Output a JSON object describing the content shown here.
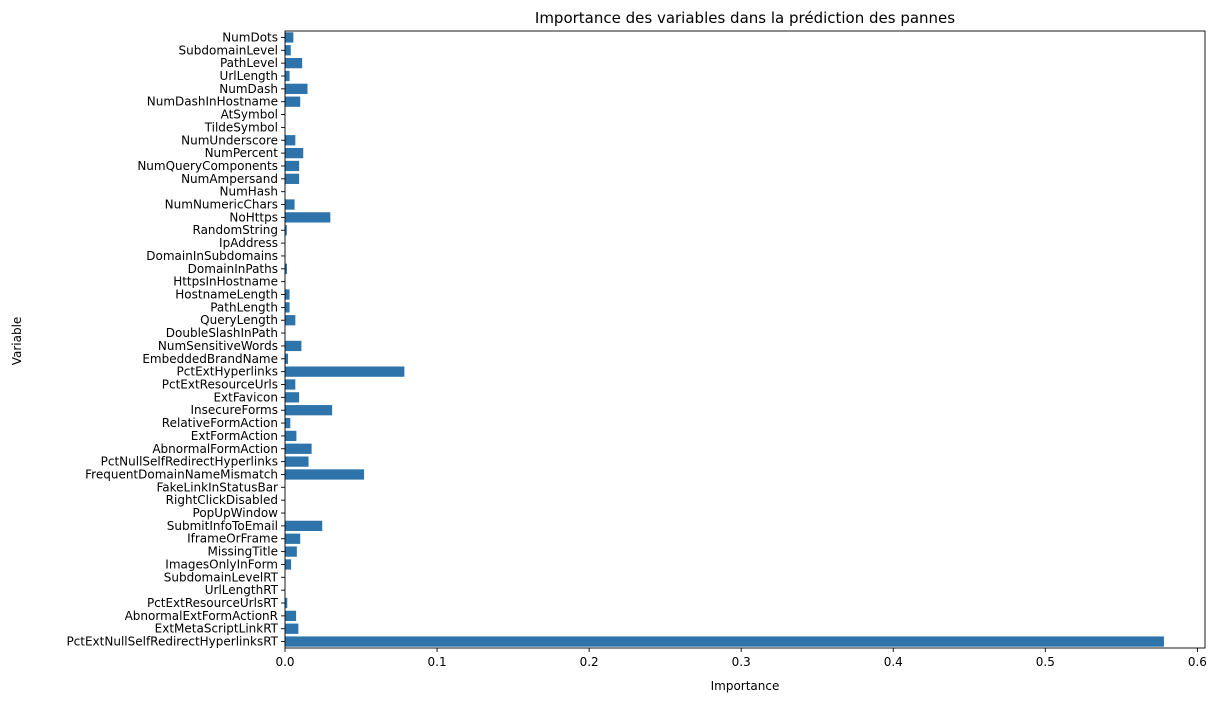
{
  "chart_data": {
    "type": "bar",
    "orientation": "horizontal",
    "title": "Importance des variables dans la prédiction des pannes",
    "xlabel": "Importance",
    "ylabel": "Variable",
    "xlim": [
      0,
      0.605
    ],
    "xticks": [
      0,
      0.1,
      0.2,
      0.3,
      0.4,
      0.5,
      0.6
    ],
    "xtick_labels": [
      "0.0",
      "0.1",
      "0.2",
      "0.3",
      "0.4",
      "0.5",
      "0.6"
    ],
    "grid": false,
    "bar_color": "#2e74ab",
    "categories": [
      "NumDots",
      "SubdomainLevel",
      "PathLevel",
      "UrlLength",
      "NumDash",
      "NumDashInHostname",
      "AtSymbol",
      "TildeSymbol",
      "NumUnderscore",
      "NumPercent",
      "NumQueryComponents",
      "NumAmpersand",
      "NumHash",
      "NumNumericChars",
      "NoHttps",
      "RandomString",
      "IpAddress",
      "DomainInSubdomains",
      "DomainInPaths",
      "HttpsInHostname",
      "HostnameLength",
      "PathLength",
      "QueryLength",
      "DoubleSlashInPath",
      "NumSensitiveWords",
      "EmbeddedBrandName",
      "PctExtHyperlinks",
      "PctExtResourceUrls",
      "ExtFavicon",
      "InsecureForms",
      "RelativeFormAction",
      "ExtFormAction",
      "AbnormalFormAction",
      "PctNullSelfRedirectHyperlinks",
      "FrequentDomainNameMismatch",
      "FakeLinkInStatusBar",
      "RightClickDisabled",
      "PopUpWindow",
      "SubmitInfoToEmail",
      "IframeOrFrame",
      "MissingTitle",
      "ImagesOnlyInForm",
      "SubdomainLevelRT",
      "UrlLengthRT",
      "PctExtResourceUrlsRT",
      "AbnormalExtFormActionR",
      "ExtMetaScriptLinkRT",
      "PctExtNullSelfRedirectHyperlinksRT"
    ],
    "values": [
      0.0055,
      0.0038,
      0.0113,
      0.003,
      0.0148,
      0.01,
      0.0,
      0.0,
      0.0068,
      0.012,
      0.0093,
      0.0093,
      0.0,
      0.0063,
      0.0298,
      0.0012,
      0.0,
      0.0,
      0.0013,
      0.0,
      0.003,
      0.003,
      0.0068,
      0.0,
      0.0108,
      0.002,
      0.0785,
      0.0068,
      0.0093,
      0.031,
      0.0035,
      0.0075,
      0.0175,
      0.0155,
      0.052,
      0.0,
      0.0,
      0.0,
      0.0245,
      0.01,
      0.0078,
      0.004,
      0.0,
      0.0,
      0.0015,
      0.0073,
      0.0088,
      0.578
    ]
  }
}
